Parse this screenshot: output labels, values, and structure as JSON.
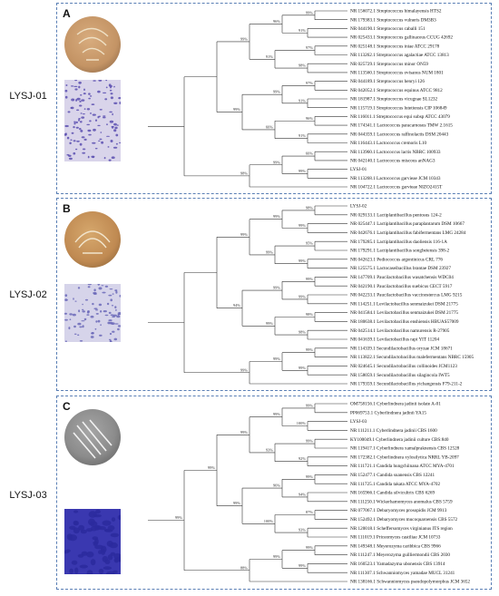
{
  "panels": [
    {
      "letter": "A",
      "strain": "LYSJ-01",
      "dish_color": "#c99a6b",
      "micro_color": "#5a4fb0",
      "tree": {
        "taxa": [
          "NR 156072.1 Streptococcus himalayensis HTS2",
          "NR 179383.1 Streptococcus vulneris DM3B3",
          "NR 044190.1 Streptococcus caballi 151",
          "NR 025433.1 Streptococcus gallinaceus CCUG 42692",
          "NR 025148.1 Streptococcus iniae ATCC 29178",
          "NR 113262.1 Streptococcus agalactiae ATCC 13813",
          "NR 025729.1 Streptococcus minor ON59",
          "NR 113560.1 Streptococcus ovisanus NUM 1801",
          "NR 044189.1 Streptococcus henryi 126",
          "NR 042052.1 Streptococcus equinus ATCC 9812",
          "NR 181987.1 Streptococcus vicugnae SL1232",
          "NR 115719.1 Streptococcus lutetiensis CIP 106849",
          "NR 116011.1 Streptococcus equi subsp ATCC 43079",
          "NR 174341.1 Lactococcus paracarnosus TMW 2.1615",
          "NR 044359.1 Lactococcus raffinolactis DSM 20443",
          "NR 116443.1 Lactococcus cremoris L10",
          "NR 113960.1 Lactococcus lactis NBRC 100933",
          "NR 042140.1 Lactococcus miscous anNAG3",
          "LYSJ-01",
          "NR 113268.1 Lactococcus garvieae JCM 10343",
          "NR 104722.1 Lactococcus garvieae NIZO2415T"
        ],
        "bootstrap": [
          "99%",
          "91%",
          "97%",
          "98%",
          "97%",
          "91%",
          "96%",
          "91%",
          "66%",
          "99%",
          "96%",
          "91%",
          "99%",
          "66%",
          "99%",
          "99%",
          "99%",
          "98%"
        ]
      }
    },
    {
      "letter": "B",
      "strain": "LYSJ-02",
      "dish_color": "#c8975f",
      "micro_color": "#6b68b8",
      "tree": {
        "taxa": [
          "LYSJ-02",
          "NR 029133.1 Lactiplantibacillus pentosus 124-2",
          "NR 025447.1 Lactiplantibacillus paraplantarum DSM 10667",
          "NR 042676.1 Lactiplantibacillus fabifermentans LMG 24284",
          "NR 179285.1 Lactiplantibacillus daoliensis 116-1A",
          "NR 179291.1 Lactiplantibacillus songbeiensis 398-2",
          "NR 042623.1 Pediococcus argentinicus CRL 776",
          "NR 125575.1 Lactocaseibacillus brantae DSM 23927",
          "NR 147709.1 Paucilactobacillus wasatchensis WDC04",
          "NR 042190.1 Paucilactobacillus suebicus CECT 5917",
          "NR 042233.1 Paucilactobacillus vaccinostercus LMG 9215",
          "NR 114251.1 Levilactobacillus senmaizukei DSM 21775",
          "NR 041584.1 Levilactobacillus senmaizukei DSM 21775",
          "NR 180638.1 Levilactobacillus enshiensis HBUAS57009",
          "NR 042514.1 Levilactobacillus namurensis R-27905",
          "NR 041639.1 Levilactobacillus rapi YIT 11204",
          "NR 114339.1 Secundilactobacillus oryzae JCM 18671",
          "NR 113822.1 Secundilactobacillus malefermentans NBRC 15905",
          "NR 024645.1 Secundilactobacillus collinoides JCM1123",
          "NR 158059.1 Secundilactobacillus silagincola IWT5",
          "NR 179359.1 Secundilactobacillus yichangensis F79-211-2"
        ],
        "bootstrap": [
          "98%",
          "99%",
          "95%",
          "99%",
          "99%",
          "99%",
          "98%",
          "98%",
          "99%",
          "99%",
          "99%",
          "99%",
          "99%",
          "99%",
          "99%",
          "99%",
          "94%",
          "99%"
        ]
      }
    },
    {
      "letter": "C",
      "strain": "LYSJ-03",
      "dish_color": "#8a8a8a",
      "micro_color": "#2c2a9e",
      "tree": {
        "taxa": [
          "OM758156.1 Cyberlindnera jadinii isolate A-01",
          "PP069753.1 Cyberlindnera jadinii YA15",
          "LYSJ-03",
          "NR 111211.1 Cyberlindnera jadinii CBS 1600",
          "KY100049.1 Cyberlindnera jadinii culture CBS:840",
          "NR 119417.1 Cyberlindnera xamalpraknensis CBS 12528",
          "NR 172382.1 Cyberlindnera xylosilytica NRRL YB-2097",
          "NR 111721.1 Candida hungchiinana ATCC MYA-4701",
          "NR 152477.1 Candida suanensis CBS 12241",
          "NR 111725.1 Candida takata ATCC MYA-4702",
          "NR 165966.1 Candida silvicultrix CBS 6269",
          "NR 111250.1 Wickerhamomyces anomalus CBS 5759",
          "NR 077067.1 Debaryomyces prosopidis JCM 9913",
          "NR 152492.1 Debaryomyces mucoquaroensis CBS 5572",
          "NR 120018.1 Scheffersomyces virginianus ITS region",
          "NR 111019.1 Priceomyces castiliae JCM 10733",
          "NR 149348.1 Meyerozyma caribbica CBS 9966",
          "NR 111247.1 Meyerozyma guilliermondii CBS 2030",
          "NR 160523.1 Yamadazyma ubonensis CBS 13914",
          "NR 111307.1 Schwanniomyces yamadae MUCL 31241",
          "NR 138166.1 Schwanniomyces pseudopolymorphus JCM 3652"
        ],
        "bootstrap": [
          "99%",
          "100%",
          "99%",
          "92%",
          "99%",
          "94%",
          "87%",
          "93%",
          "99%",
          "99%",
          "99%",
          "93%",
          "96%",
          "100%",
          "99%",
          "99%",
          "99%",
          "88%",
          "99%",
          "99%"
        ]
      }
    }
  ]
}
